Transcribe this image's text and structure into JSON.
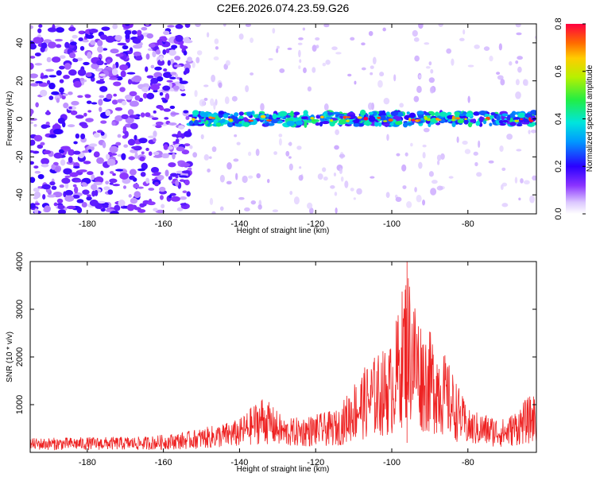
{
  "figure": {
    "title": "C2E6.2026.074.23.59.G26"
  },
  "chart_data": [
    {
      "type": "heatmap",
      "xlabel": "Height of straight line (km)",
      "ylabel": "Frequency (Hz)",
      "xlim": [
        -195,
        -62
      ],
      "ylim": [
        -50,
        50
      ],
      "xticks": [
        -180,
        -160,
        -140,
        -120,
        -100,
        -80
      ],
      "yticks": [
        -40,
        -20,
        0,
        20,
        40
      ],
      "colorbar": {
        "label": "Normalized spectral amplitude",
        "range": [
          0.0,
          0.8
        ],
        "ticks": [
          0.0,
          0.2,
          0.4,
          0.6,
          0.8
        ]
      },
      "features": {
        "noise_region_km": [
          -195,
          -153
        ],
        "signal_track_km": [
          -153,
          -62
        ],
        "signal_frequency_hz": 0
      }
    },
    {
      "type": "line",
      "xlabel": "Height of straight line (km)",
      "ylabel": "SNR (10 * v/v)",
      "xlim": [
        -195,
        -62
      ],
      "ylim": [
        0,
        4000
      ],
      "xticks": [
        -180,
        -160,
        -140,
        -120,
        -100,
        -80
      ],
      "yticks": [
        1000,
        2000,
        3000,
        4000
      ],
      "series_color": "#ee2222",
      "envelope": [
        {
          "x": -195,
          "y": 300
        },
        {
          "x": -180,
          "y": 320
        },
        {
          "x": -165,
          "y": 330
        },
        {
          "x": -155,
          "y": 420
        },
        {
          "x": -145,
          "y": 600
        },
        {
          "x": -140,
          "y": 700
        },
        {
          "x": -134,
          "y": 1200
        },
        {
          "x": -128,
          "y": 700
        },
        {
          "x": -120,
          "y": 800
        },
        {
          "x": -114,
          "y": 900
        },
        {
          "x": -110,
          "y": 1500
        },
        {
          "x": -105,
          "y": 2000
        },
        {
          "x": -100,
          "y": 2300
        },
        {
          "x": -96,
          "y": 4000
        },
        {
          "x": -92,
          "y": 2700
        },
        {
          "x": -88,
          "y": 2400
        },
        {
          "x": -84,
          "y": 1700
        },
        {
          "x": -80,
          "y": 900
        },
        {
          "x": -75,
          "y": 800
        },
        {
          "x": -70,
          "y": 700
        },
        {
          "x": -65,
          "y": 1100
        },
        {
          "x": -62,
          "y": 1300
        }
      ]
    }
  ]
}
